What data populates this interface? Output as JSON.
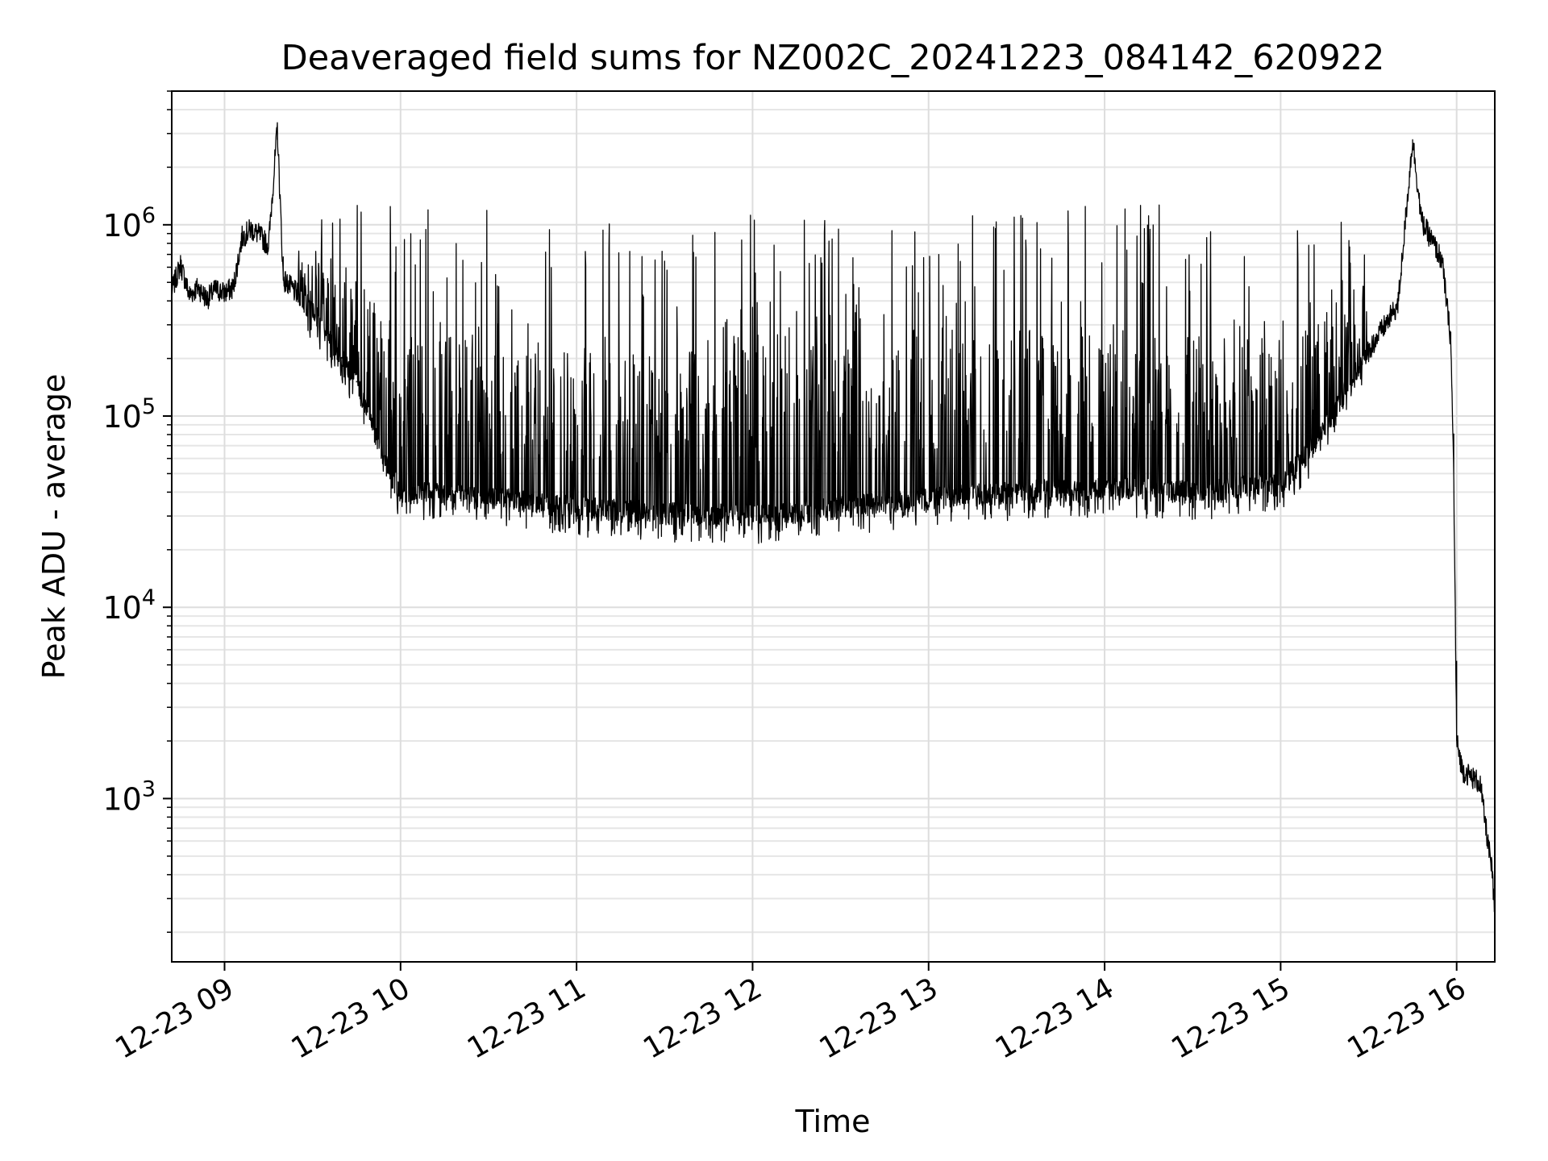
{
  "chart_data": {
    "type": "line",
    "title": "Deaveraged field sums for NZ002C_20241223_084142_620922",
    "xlabel": "Time",
    "ylabel": "Peak ADU - average",
    "y_scale": "log",
    "grid": true,
    "line_color": "#000000",
    "x_ticks": [
      {
        "value": "2024-12-23 09:00",
        "label": "12-23 09"
      },
      {
        "value": "2024-12-23 10:00",
        "label": "12-23 10"
      },
      {
        "value": "2024-12-23 11:00",
        "label": "12-23 11"
      },
      {
        "value": "2024-12-23 12:00",
        "label": "12-23 12"
      },
      {
        "value": "2024-12-23 13:00",
        "label": "12-23 13"
      },
      {
        "value": "2024-12-23 14:00",
        "label": "12-23 14"
      },
      {
        "value": "2024-12-23 15:00",
        "label": "12-23 15"
      },
      {
        "value": "2024-12-23 16:00",
        "label": "12-23 16"
      }
    ],
    "y_ticks": [
      {
        "value": 1000,
        "base": "10",
        "exp": "3"
      },
      {
        "value": 10000,
        "base": "10",
        "exp": "4"
      },
      {
        "value": 100000,
        "base": "10",
        "exp": "5"
      },
      {
        "value": 1000000,
        "base": "10",
        "exp": "6"
      }
    ],
    "xlim": [
      "2024-12-23 08:42",
      "2024-12-23 16:13"
    ],
    "ylim": [
      140,
      5000000
    ],
    "series": [
      {
        "points": [
          [
            "2024-12-23 08:42",
            450000
          ],
          [
            "2024-12-23 08:45",
            620000
          ],
          [
            "2024-12-23 08:48",
            430000
          ],
          [
            "2024-12-23 08:51",
            470000
          ],
          [
            "2024-12-23 08:54",
            410000
          ],
          [
            "2024-12-23 08:57",
            460000
          ],
          [
            "2024-12-23 09:00",
            440000
          ],
          [
            "2024-12-23 09:03",
            470000
          ],
          [
            "2024-12-23 09:06",
            860000
          ],
          [
            "2024-12-23 09:09",
            950000
          ],
          [
            "2024-12-23 09:12",
            880000
          ],
          [
            "2024-12-23 09:15",
            780000
          ],
          [
            "2024-12-23 09:18",
            3200000
          ],
          [
            "2024-12-23 09:20",
            520000
          ],
          [
            "2024-12-23 09:25",
            430000
          ],
          [
            "2024-12-23 09:30",
            350000
          ],
          [
            "2024-12-23 09:35",
            270000
          ],
          [
            "2024-12-23 09:40",
            200000
          ],
          [
            "2024-12-23 09:45",
            150000
          ],
          [
            "2024-12-23 09:50",
            95000
          ],
          [
            "2024-12-23 09:55",
            55000
          ],
          [
            "2024-12-23 10:00",
            40000
          ],
          [
            "2024-12-23 10:30",
            38000
          ],
          [
            "2024-12-23 11:00",
            33000
          ],
          [
            "2024-12-23 11:30",
            31000
          ],
          [
            "2024-12-23 12:00",
            30000
          ],
          [
            "2024-12-23 12:30",
            33000
          ],
          [
            "2024-12-23 13:00",
            37000
          ],
          [
            "2024-12-23 13:30",
            40000
          ],
          [
            "2024-12-23 14:00",
            42000
          ],
          [
            "2024-12-23 14:30",
            40000
          ],
          [
            "2024-12-23 15:00",
            45000
          ],
          [
            "2024-12-23 15:10",
            65000
          ],
          [
            "2024-12-23 15:20",
            120000
          ],
          [
            "2024-12-23 15:30",
            220000
          ],
          [
            "2024-12-23 15:40",
            380000
          ],
          [
            "2024-12-23 15:45",
            2800000
          ],
          [
            "2024-12-23 15:48",
            1050000
          ],
          [
            "2024-12-23 15:52",
            800000
          ],
          [
            "2024-12-23 15:55",
            650000
          ],
          [
            "2024-12-23 15:58",
            250000
          ],
          [
            "2024-12-23 15:59",
            50000
          ],
          [
            "2024-12-23 16:00",
            2000
          ],
          [
            "2024-12-23 16:02",
            1400
          ],
          [
            "2024-12-23 16:05",
            1300
          ],
          [
            "2024-12-23 16:08",
            1200
          ],
          [
            "2024-12-23 16:10",
            700
          ],
          [
            "2024-12-23 16:12",
            420
          ],
          [
            "2024-12-23 16:13",
            250
          ]
        ],
        "spike_envelope": [
          [
            "2024-12-23 09:25",
            900000
          ],
          [
            "2024-12-23 09:45",
            1500000
          ],
          [
            "2024-12-23 10:00",
            1400000
          ],
          [
            "2024-12-23 10:30",
            1200000
          ],
          [
            "2024-12-23 11:00",
            1200000
          ],
          [
            "2024-12-23 11:30",
            1100000
          ],
          [
            "2024-12-23 12:00",
            1200000
          ],
          [
            "2024-12-23 12:30",
            1400000
          ],
          [
            "2024-12-23 13:00",
            1000000
          ],
          [
            "2024-12-23 13:30",
            1400000
          ],
          [
            "2024-12-23 14:00",
            1400000
          ],
          [
            "2024-12-23 14:30",
            1200000
          ],
          [
            "2024-12-23 15:00",
            1100000
          ],
          [
            "2024-12-23 15:30",
            1100000
          ]
        ]
      }
    ]
  }
}
